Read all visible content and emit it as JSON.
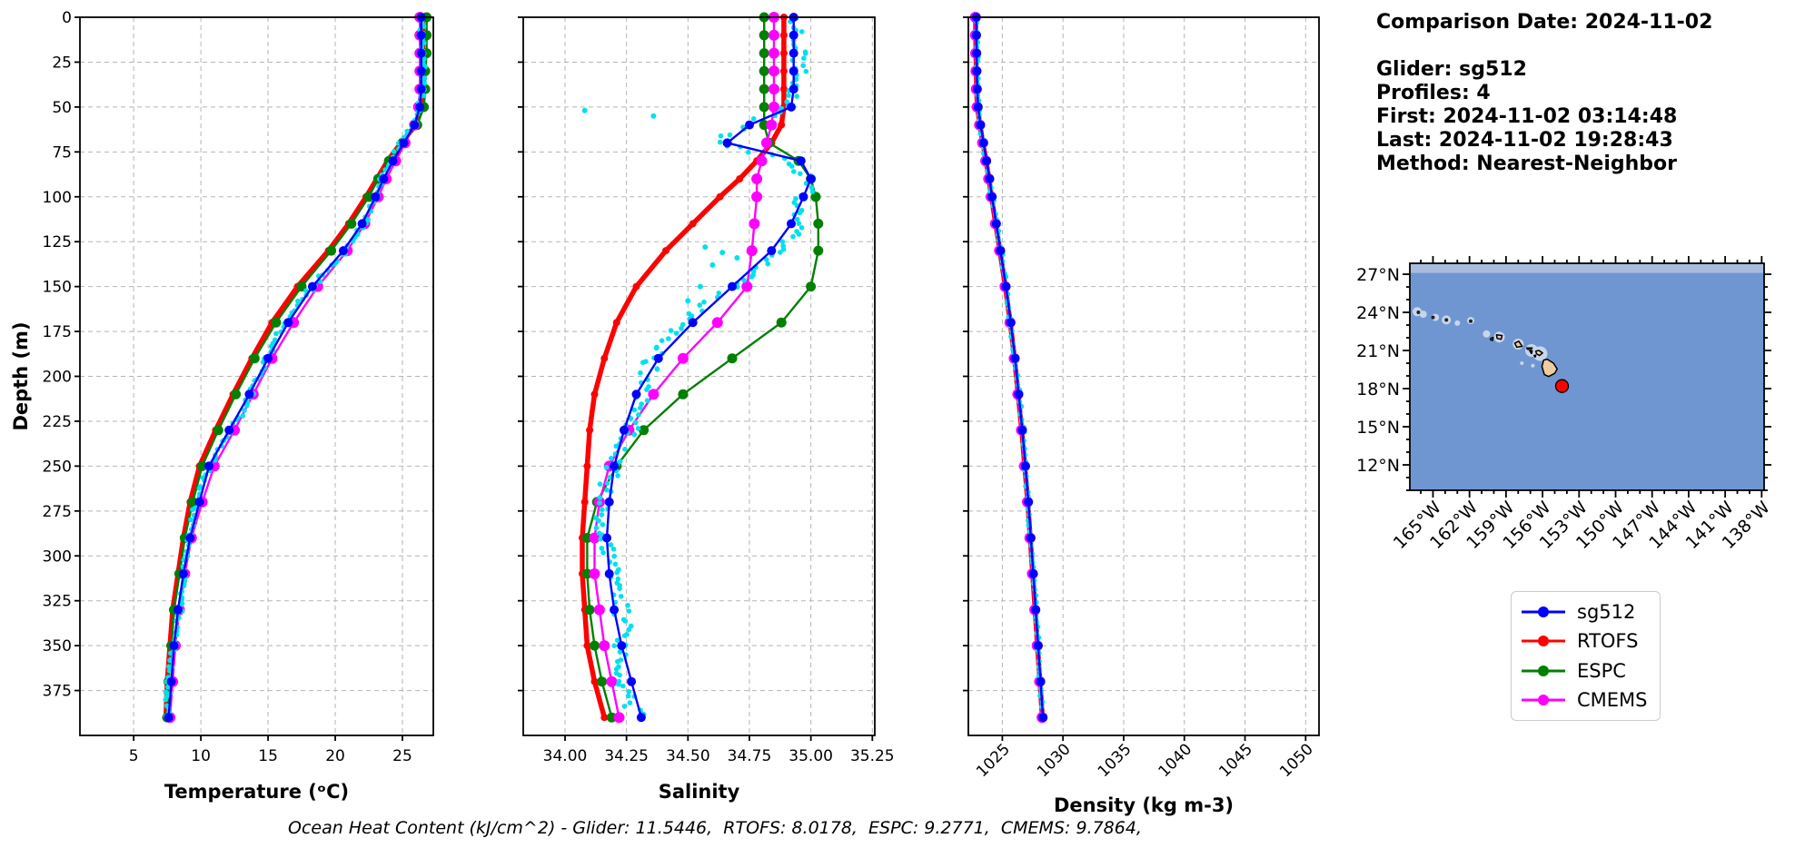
{
  "info_panel": {
    "title": "Comparison Date: 2024-11-02",
    "lines": [
      "Glider: sg512",
      "Profiles: 4",
      "First: 2024-11-02 03:14:48",
      "Last: 2024-11-02 19:28:43",
      "Method: Nearest-Neighbor"
    ]
  },
  "legend": {
    "items": [
      {
        "label": "sg512",
        "color": "#0000ff"
      },
      {
        "label": "RTOFS",
        "color": "#ff0000"
      },
      {
        "label": "ESPC",
        "color": "#008000"
      },
      {
        "label": "CMEMS",
        "color": "#ff00ff"
      }
    ]
  },
  "footer": {
    "text": "Ocean Heat Content (kJ/cm^2) - Glider: 11.5446,  RTOFS: 8.0178,  ESPC: 9.2771,  CMEMS: 9.7864,"
  },
  "chart_data": [
    {
      "id": "temperature",
      "type": "line",
      "xlabel": "Temperature (ᵒC)",
      "ylabel": "Depth (m)",
      "xlim": [
        1.0,
        27.3
      ],
      "ylim": [
        0,
        400
      ],
      "grid": true,
      "xtick_vals": [
        5,
        10,
        15,
        20,
        25
      ],
      "xtick_labels": [
        "5",
        "10",
        "15",
        "20",
        "25"
      ],
      "ytick_vals": [
        0,
        25,
        50,
        75,
        100,
        125,
        150,
        175,
        200,
        225,
        250,
        275,
        300,
        325,
        350,
        375
      ],
      "ytick_labels": [
        "0",
        "25",
        "50",
        "75",
        "100",
        "125",
        "150",
        "175",
        "200",
        "225",
        "250",
        "275",
        "300",
        "325",
        "350",
        "375"
      ],
      "show_ytick_labels": true,
      "depths": [
        0,
        10,
        20,
        30,
        40,
        50,
        60,
        70,
        80,
        90,
        100,
        115,
        130,
        150,
        170,
        190,
        210,
        230,
        250,
        270,
        290,
        310,
        330,
        350,
        370,
        390
      ],
      "series": [
        {
          "name": "sg512",
          "color": "#0000ff",
          "lw": 2.4,
          "marker_r": 5,
          "values": [
            26.4,
            26.4,
            26.4,
            26.4,
            26.4,
            26.3,
            25.9,
            25.1,
            24.3,
            23.6,
            23.0,
            22.0,
            20.6,
            18.3,
            16.5,
            15.0,
            13.6,
            12.1,
            10.6,
            9.9,
            9.2,
            8.7,
            8.3,
            8.0,
            7.8,
            7.6
          ]
        },
        {
          "name": "RTOFS",
          "color": "#ff0000",
          "lw": 5.5,
          "marker_r": 4,
          "values": [
            26.5,
            26.5,
            26.5,
            26.5,
            26.5,
            26.4,
            26.0,
            24.9,
            23.9,
            23.1,
            22.3,
            21.0,
            19.5,
            17.2,
            15.3,
            13.8,
            12.4,
            11.1,
            9.9,
            9.2,
            8.7,
            8.3,
            7.9,
            7.7,
            7.5,
            7.4
          ]
        },
        {
          "name": "ESPC",
          "color": "#008000",
          "lw": 2.4,
          "marker_r": 5.5,
          "values": [
            26.8,
            26.8,
            26.8,
            26.7,
            26.7,
            26.6,
            26.1,
            25.0,
            24.0,
            23.2,
            22.5,
            21.2,
            19.7,
            17.5,
            15.6,
            14.0,
            12.6,
            11.3,
            10.1,
            9.4,
            8.8,
            8.4,
            8.0,
            7.8,
            7.6,
            7.5
          ]
        },
        {
          "name": "CMEMS",
          "color": "#ff00ff",
          "lw": 2.4,
          "marker_r": 6,
          "values": [
            26.3,
            26.3,
            26.3,
            26.3,
            26.3,
            26.2,
            25.9,
            25.2,
            24.5,
            23.8,
            23.2,
            22.2,
            20.9,
            18.7,
            16.9,
            15.3,
            13.9,
            12.5,
            11.0,
            10.1,
            9.3,
            8.8,
            8.4,
            8.1,
            7.9,
            7.7
          ]
        }
      ],
      "scatter": {
        "name": "glider-raw",
        "color": "#00e0ee",
        "follow": "sg512",
        "seed": 11,
        "step": 2,
        "jitter": 0.2,
        "wobble": 0.18,
        "outliers": []
      },
      "draw_order": [
        "RTOFS",
        "ESPC",
        "CMEMS",
        "scatter",
        "sg512"
      ]
    },
    {
      "id": "salinity",
      "type": "line",
      "xlabel": "Salinity",
      "ylabel": "",
      "xlim": [
        33.83,
        35.26
      ],
      "ylim": [
        0,
        400
      ],
      "grid": true,
      "xtick_vals": [
        34.0,
        34.25,
        34.5,
        34.75,
        35.0,
        35.25
      ],
      "xtick_labels": [
        "34.00",
        "34.25",
        "34.50",
        "34.75",
        "35.00",
        "35.25"
      ],
      "ytick_vals": [
        0,
        25,
        50,
        75,
        100,
        125,
        150,
        175,
        200,
        225,
        250,
        275,
        300,
        325,
        350,
        375
      ],
      "ytick_labels": [],
      "show_ytick_labels": false,
      "depths": [
        0,
        10,
        20,
        30,
        40,
        50,
        60,
        70,
        80,
        90,
        100,
        115,
        130,
        150,
        170,
        190,
        210,
        230,
        250,
        270,
        290,
        310,
        330,
        350,
        370,
        390
      ],
      "series": [
        {
          "name": "sg512",
          "color": "#0000ff",
          "lw": 2.4,
          "marker_r": 5,
          "values": [
            34.93,
            34.93,
            34.93,
            34.93,
            34.93,
            34.92,
            34.75,
            34.66,
            34.96,
            35.0,
            34.97,
            34.92,
            34.84,
            34.68,
            34.52,
            34.38,
            34.29,
            34.24,
            34.2,
            34.18,
            34.17,
            34.18,
            34.2,
            34.23,
            34.27,
            34.31
          ]
        },
        {
          "name": "RTOFS",
          "color": "#ff0000",
          "lw": 5.5,
          "marker_r": 4,
          "values": [
            34.89,
            34.89,
            34.89,
            34.89,
            34.89,
            34.89,
            34.88,
            34.84,
            34.78,
            34.71,
            34.63,
            34.52,
            34.41,
            34.29,
            34.21,
            34.16,
            34.12,
            34.1,
            34.09,
            34.08,
            34.07,
            34.07,
            34.08,
            34.09,
            34.12,
            34.16
          ]
        },
        {
          "name": "ESPC",
          "color": "#008000",
          "lw": 2.4,
          "marker_r": 5.5,
          "values": [
            34.81,
            34.81,
            34.81,
            34.81,
            34.81,
            34.81,
            34.81,
            34.83,
            34.95,
            35.0,
            35.02,
            35.03,
            35.03,
            35.0,
            34.88,
            34.68,
            34.48,
            34.32,
            34.21,
            34.13,
            34.09,
            34.09,
            34.1,
            34.12,
            34.15,
            34.19
          ]
        },
        {
          "name": "CMEMS",
          "color": "#ff00ff",
          "lw": 2.4,
          "marker_r": 6,
          "values": [
            34.85,
            34.85,
            34.85,
            34.85,
            34.85,
            34.85,
            34.84,
            34.82,
            34.8,
            34.78,
            34.78,
            34.77,
            34.76,
            34.74,
            34.62,
            34.48,
            34.36,
            34.26,
            34.18,
            34.14,
            34.12,
            34.12,
            34.14,
            34.16,
            34.19,
            34.22
          ]
        }
      ],
      "scatter": {
        "name": "glider-raw",
        "color": "#00e0ee",
        "follow": "sg512",
        "seed": 22,
        "step": 2,
        "jitter": 0.035,
        "wobble": 0.03,
        "outliers": [
          [
            34.08,
            52
          ],
          [
            34.36,
            55
          ],
          [
            34.57,
            128
          ],
          [
            34.64,
            131
          ],
          [
            34.7,
            134
          ],
          [
            34.6,
            138
          ],
          [
            34.55,
            150
          ],
          [
            34.5,
            158
          ]
        ]
      },
      "draw_order": [
        "RTOFS",
        "ESPC",
        "CMEMS",
        "scatter",
        "sg512"
      ]
    },
    {
      "id": "density",
      "type": "line",
      "xlabel": "Density (kg m-3)",
      "ylabel": "",
      "xlim": [
        1022.2,
        1051.1
      ],
      "ylim": [
        0,
        400
      ],
      "grid": true,
      "xtick_rotate": 45,
      "xtick_vals": [
        1025,
        1030,
        1035,
        1040,
        1045,
        1050
      ],
      "xtick_labels": [
        "1025",
        "1030",
        "1035",
        "1040",
        "1045",
        "1050"
      ],
      "ytick_vals": [
        0,
        25,
        50,
        75,
        100,
        125,
        150,
        175,
        200,
        225,
        250,
        275,
        300,
        325,
        350,
        375
      ],
      "ytick_labels": [],
      "show_ytick_labels": false,
      "depths": [
        0,
        10,
        20,
        30,
        40,
        50,
        60,
        70,
        80,
        90,
        100,
        115,
        130,
        150,
        170,
        190,
        210,
        230,
        250,
        270,
        290,
        310,
        330,
        350,
        370,
        390
      ],
      "series": [
        {
          "name": "sg512",
          "color": "#0000ff",
          "lw": 2.4,
          "marker_r": 5,
          "values": [
            1022.85,
            1022.86,
            1022.88,
            1022.9,
            1022.93,
            1023.0,
            1023.2,
            1023.45,
            1023.7,
            1023.95,
            1024.15,
            1024.5,
            1024.85,
            1025.3,
            1025.7,
            1026.05,
            1026.35,
            1026.65,
            1026.9,
            1027.15,
            1027.35,
            1027.55,
            1027.75,
            1027.95,
            1028.15,
            1028.35
          ]
        },
        {
          "name": "RTOFS",
          "color": "#ff0000",
          "lw": 5.5,
          "marker_r": 4,
          "values": [
            1022.8,
            1022.81,
            1022.83,
            1022.85,
            1022.88,
            1022.95,
            1023.15,
            1023.4,
            1023.65,
            1023.9,
            1024.1,
            1024.45,
            1024.8,
            1025.25,
            1025.65,
            1026.0,
            1026.3,
            1026.6,
            1026.85,
            1027.1,
            1027.3,
            1027.5,
            1027.7,
            1027.9,
            1028.1,
            1028.3
          ]
        },
        {
          "name": "ESPC",
          "color": "#008000",
          "lw": 2.4,
          "marker_r": 5.5,
          "values": [
            1022.82,
            1022.83,
            1022.85,
            1022.87,
            1022.9,
            1022.97,
            1023.17,
            1023.42,
            1023.67,
            1023.92,
            1024.12,
            1024.47,
            1024.82,
            1025.27,
            1025.67,
            1026.02,
            1026.32,
            1026.62,
            1026.87,
            1027.12,
            1027.32,
            1027.52,
            1027.72,
            1027.92,
            1028.12,
            1028.32
          ]
        },
        {
          "name": "CMEMS",
          "color": "#ff00ff",
          "lw": 2.4,
          "marker_r": 6,
          "values": [
            1022.77,
            1022.78,
            1022.8,
            1022.82,
            1022.85,
            1022.92,
            1023.12,
            1023.37,
            1023.62,
            1023.87,
            1024.07,
            1024.42,
            1024.77,
            1025.22,
            1025.62,
            1025.97,
            1026.27,
            1026.57,
            1026.82,
            1027.07,
            1027.27,
            1027.47,
            1027.67,
            1027.87,
            1028.07,
            1028.27
          ]
        }
      ],
      "scatter": {
        "name": "glider-raw",
        "color": "#00e0ee",
        "follow": "sg512",
        "seed": 33,
        "step": 3,
        "jitter": 0.1,
        "wobble": 0.06,
        "outliers": []
      },
      "draw_order": [
        "RTOFS",
        "ESPC",
        "CMEMS",
        "scatter",
        "sg512"
      ]
    },
    {
      "id": "map",
      "type": "map",
      "extent": {
        "lon": [
          -166.9,
          -137.8
        ],
        "lat": [
          10.0,
          27.86
        ]
      },
      "lat_tick_vals": [
        27,
        24,
        21,
        18,
        15,
        12
      ],
      "lat_tick_labels": [
        "27°N",
        "24°N",
        "21°N",
        "18°N",
        "15°N",
        "12°N"
      ],
      "lon_tick_vals": [
        -165,
        -162,
        -159,
        -156,
        -153,
        -150,
        -147,
        -144,
        -141,
        -138
      ],
      "lon_tick_labels": [
        "165°W",
        "162°W",
        "159°W",
        "156°W",
        "153°W",
        "150°W",
        "147°W",
        "144°W",
        "141°W",
        "138°W"
      ],
      "minor_tick_step": 1,
      "glider_marker": {
        "lon": -154.4,
        "lat": 18.2,
        "color": "#ff0000"
      },
      "colors": {
        "ocean": "#7096d2",
        "band": "#a9bcdf",
        "shoal": "#c8d6ea",
        "land": "#edcd9f",
        "coast": "#000000"
      },
      "islands": [
        [
          [
            -156.05,
            19.75
          ],
          [
            -155.9,
            20.25
          ],
          [
            -155.6,
            20.3
          ],
          [
            -155.1,
            20.0
          ],
          [
            -154.8,
            19.55
          ],
          [
            -155.0,
            19.2
          ],
          [
            -155.5,
            18.95
          ],
          [
            -155.85,
            19.1
          ]
        ],
        [
          [
            -156.55,
            20.95
          ],
          [
            -156.3,
            21.0
          ],
          [
            -156.0,
            20.8
          ],
          [
            -156.25,
            20.6
          ],
          [
            -156.5,
            20.75
          ]
        ],
        [
          [
            -156.7,
            20.6
          ],
          [
            -156.55,
            20.63
          ],
          [
            -156.6,
            20.48
          ]
        ],
        [
          [
            -157.05,
            20.95
          ],
          [
            -156.85,
            20.98
          ],
          [
            -156.9,
            20.76
          ]
        ],
        [
          [
            -157.3,
            21.2
          ],
          [
            -156.85,
            21.2
          ],
          [
            -157.0,
            21.05
          ],
          [
            -157.25,
            21.1
          ]
        ],
        [
          [
            -158.28,
            21.58
          ],
          [
            -157.95,
            21.73
          ],
          [
            -157.67,
            21.32
          ],
          [
            -158.12,
            21.26
          ]
        ],
        [
          [
            -159.78,
            22.23
          ],
          [
            -159.32,
            22.18
          ],
          [
            -159.4,
            21.88
          ],
          [
            -159.73,
            21.95
          ]
        ],
        [
          [
            -160.25,
            21.95
          ],
          [
            -160.05,
            22.02
          ],
          [
            -160.12,
            21.78
          ],
          [
            -160.28,
            21.85
          ]
        ]
      ],
      "shoals": [
        [
          -166.3,
          24.05,
          5
        ],
        [
          -165.8,
          23.85,
          4
        ],
        [
          -164.8,
          23.6,
          4
        ],
        [
          -163.9,
          23.4,
          5
        ],
        [
          -163.0,
          23.15,
          3
        ],
        [
          -161.9,
          23.35,
          4
        ],
        [
          -160.6,
          22.3,
          4
        ],
        [
          -159.55,
          22.05,
          6
        ],
        [
          -158.0,
          21.5,
          6
        ],
        [
          -156.9,
          21.0,
          7
        ],
        [
          -156.2,
          20.75,
          8
        ],
        [
          -157.7,
          20.0,
          2
        ],
        [
          -156.8,
          19.8,
          2
        ]
      ],
      "islets": [
        [
          -166.2,
          24.0
        ],
        [
          -165.0,
          23.6
        ],
        [
          -163.9,
          23.4
        ],
        [
          -161.9,
          23.3
        ]
      ]
    }
  ]
}
